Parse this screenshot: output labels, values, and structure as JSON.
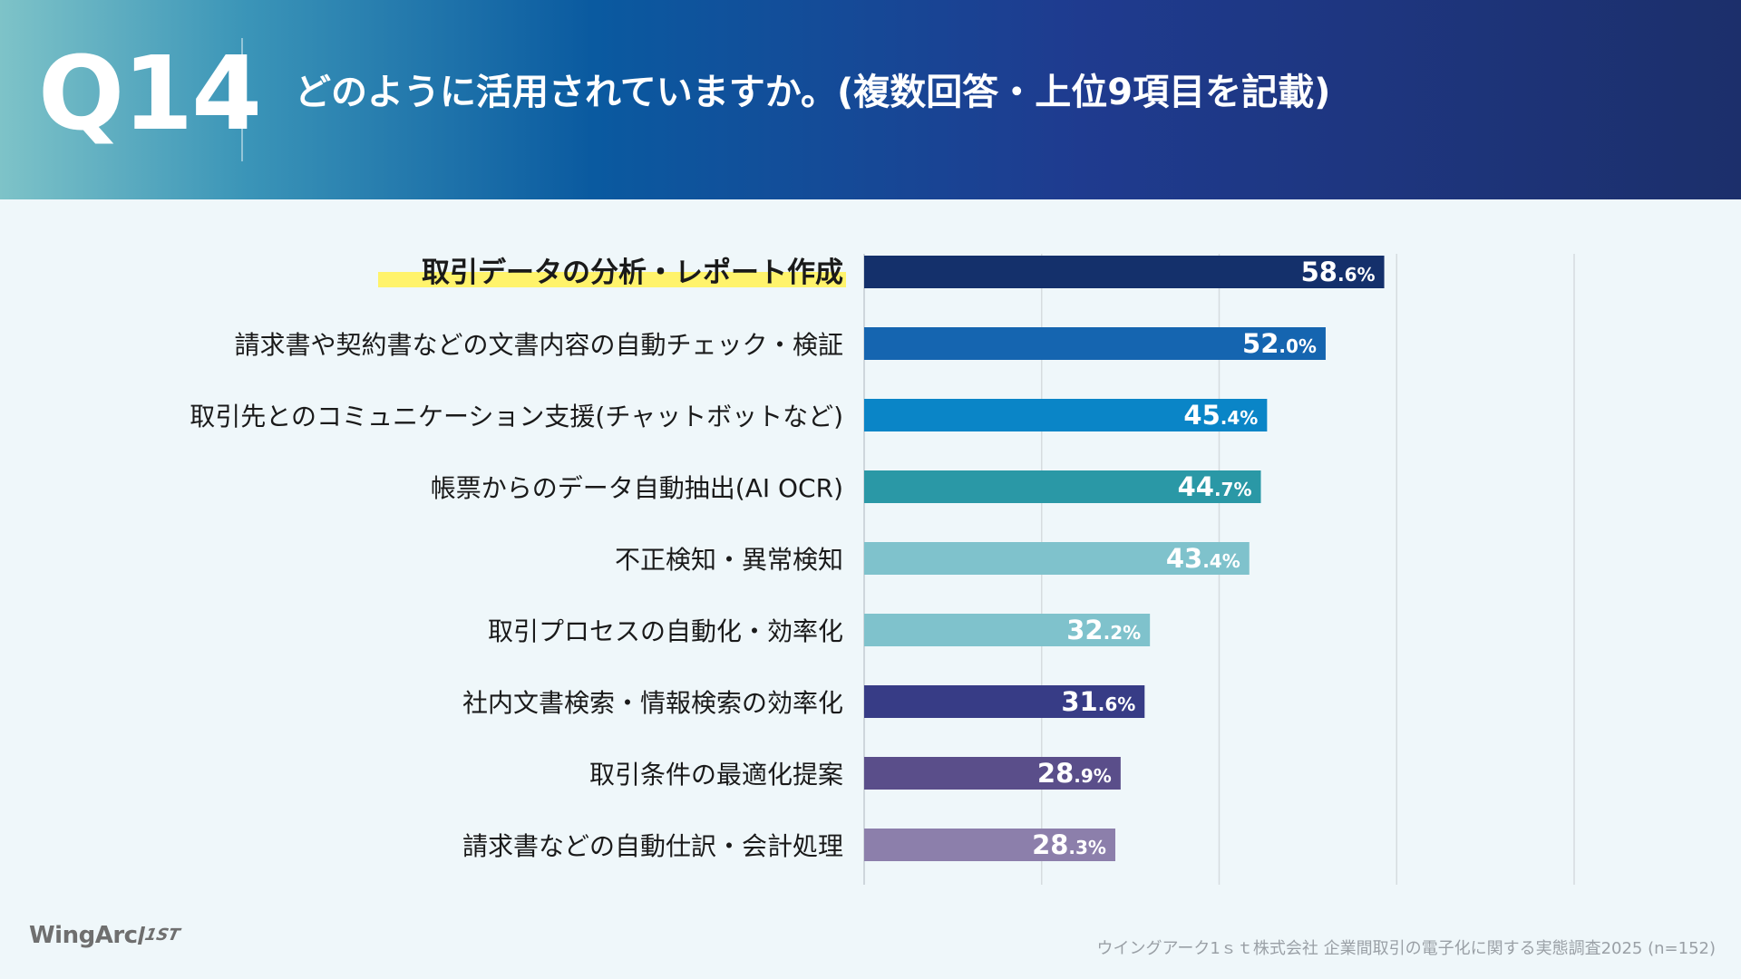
{
  "header": {
    "question_number": "Q14",
    "title": "どのように活用されていますか。(複数回答・上位9項目を記載)"
  },
  "chart_data": {
    "type": "bar",
    "orientation": "horizontal",
    "xlim": [
      0,
      80
    ],
    "grid": true,
    "categories": [
      "取引データの分析・レポート作成",
      "請求書や契約書などの文書内容の自動チェック・検証",
      "取引先とのコミュニケーション支援(チャットボットなど)",
      "帳票からのデータ自動抽出(AI OCR)",
      "不正検知・異常検知",
      "取引プロセスの自動化・効率化",
      "社内文書検索・情報検索の効率化",
      "取引条件の最適化提案",
      "請求書などの自動仕訳・会計処理"
    ],
    "values": [
      58.6,
      52.0,
      45.4,
      44.7,
      43.4,
      32.2,
      31.6,
      28.9,
      28.3
    ],
    "value_labels": [
      {
        "int": "58",
        "dec": ".6%"
      },
      {
        "int": "52",
        "dec": ".0%"
      },
      {
        "int": "45",
        "dec": ".4%"
      },
      {
        "int": "44",
        "dec": ".7%"
      },
      {
        "int": "43",
        "dec": ".4%"
      },
      {
        "int": "32",
        "dec": ".2%"
      },
      {
        "int": "31",
        "dec": ".6%"
      },
      {
        "int": "28",
        "dec": ".9%"
      },
      {
        "int": "28",
        "dec": ".3%"
      }
    ],
    "bar_colors": [
      "#14306b",
      "#1565b0",
      "#0a85c7",
      "#2a98a6",
      "#7fc2cc",
      "#7fc2cc",
      "#373c86",
      "#5a4e8a",
      "#8c7fab"
    ],
    "highlighted_category_index": 0,
    "highlight_color": "#fff36b"
  },
  "footer": {
    "brand": "WingArc",
    "brand_mark": "1ST",
    "source": "ウイングアーク1ｓｔ株式会社 企業間取引の電子化に関する実態調査2025 (n=152)"
  }
}
